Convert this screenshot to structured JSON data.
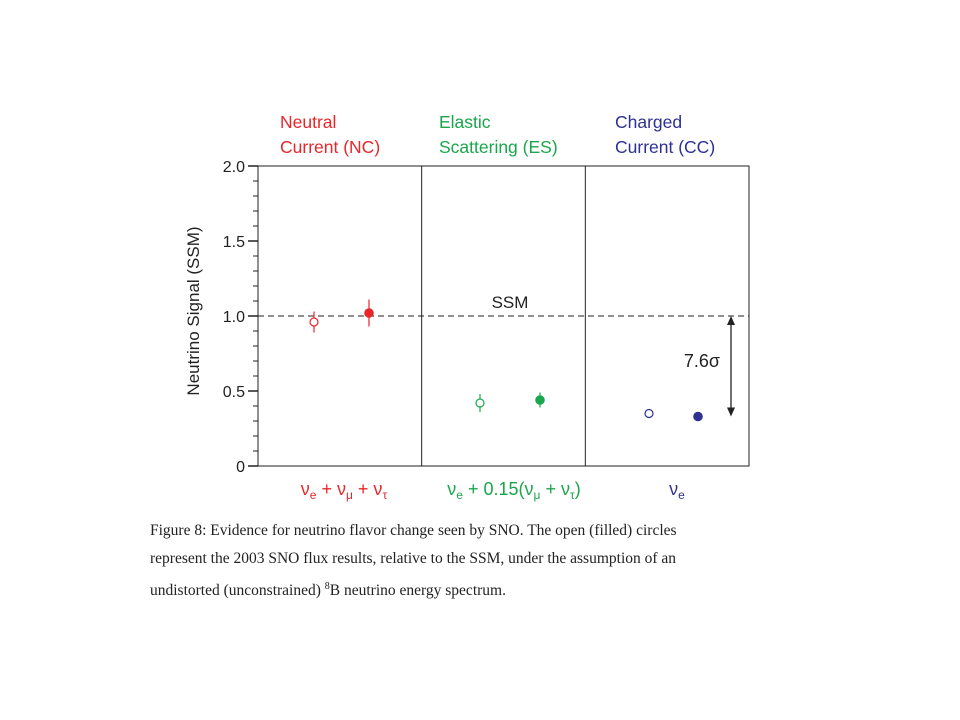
{
  "chart_data": {
    "type": "scatter",
    "ylabel": "Neutrino Signal  (SSM)",
    "ylim": [
      0,
      2.0
    ],
    "yticks": [
      {
        "value": 0,
        "label": "0"
      },
      {
        "value": 0.5,
        "label": "0.5"
      },
      {
        "value": 1.0,
        "label": "1.0"
      },
      {
        "value": 1.5,
        "label": "1.5"
      },
      {
        "value": 2.0,
        "label": "2.0"
      }
    ],
    "reference_line": {
      "value": 1.0,
      "label": "SSM",
      "style": "dashed"
    },
    "panels": [
      {
        "header_line1": "Neutral",
        "header_line2": "Current  (NC)",
        "color": "#e8262a",
        "footer": [
          "ν",
          "e",
          " + ν",
          "μ",
          " + ν",
          "τ"
        ],
        "points": [
          {
            "kind": "open",
            "value": 0.96,
            "err": 0.07
          },
          {
            "kind": "filled",
            "value": 1.02,
            "err": 0.09
          }
        ]
      },
      {
        "header_line1": "Elastic",
        "header_line2": "Scattering  (ES)",
        "color": "#1aa64b",
        "footer": [
          "ν",
          "e",
          " + 0.15(ν",
          "μ",
          " + ν",
          "τ",
          ")"
        ],
        "points": [
          {
            "kind": "open",
            "value": 0.42,
            "err": 0.06
          },
          {
            "kind": "filled",
            "value": 0.44,
            "err": 0.05
          }
        ]
      },
      {
        "header_line1": "Charged",
        "header_line2": "Current  (CC)",
        "color": "#2e3192",
        "footer": [
          "ν",
          "e"
        ],
        "points": [
          {
            "kind": "open",
            "value": 0.35,
            "err": 0
          },
          {
            "kind": "filled",
            "value": 0.33,
            "err": 0
          }
        ]
      }
    ],
    "annotation": {
      "text": "7.6σ",
      "from": 1.0,
      "to": 0.33
    }
  },
  "caption": {
    "line1": "Figure 8:  Evidence for neutrino flavor change seen by SNO. The open (filled) circles",
    "line2": "represent the 2003 SNO flux results, relative to the SSM, under the assumption of an",
    "line3_before": "undistorted (unconstrained) ",
    "line3_sup": "8",
    "line3_after": "B neutrino energy spectrum."
  }
}
